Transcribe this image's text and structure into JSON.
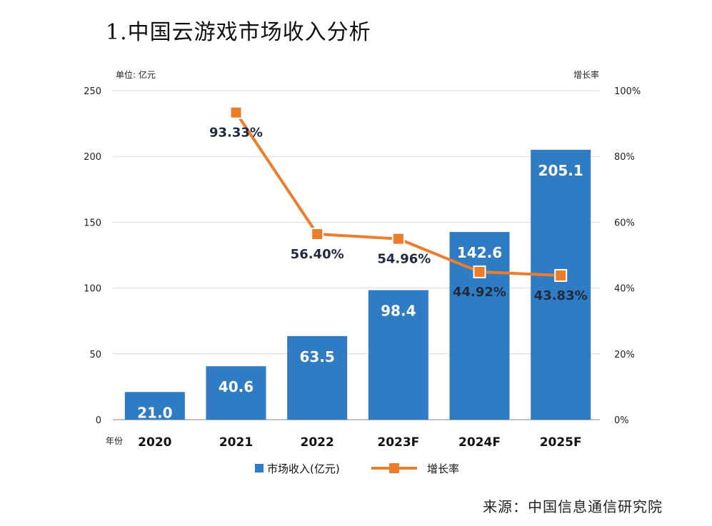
{
  "title": "1.中国云游戏市场收入分析",
  "unit_left": "单位: 亿元",
  "unit_right": "增长率",
  "year_axis_label": "年份",
  "source": "来源：中国信息通信研究院",
  "colors": {
    "bar": "#2f7cc4",
    "line": "#ee7d2b",
    "marker_fill": "#ee7d2b",
    "marker_stroke": "#ffffff"
  },
  "chart_data": {
    "type": "bar",
    "categories": [
      "2020",
      "2021",
      "2022",
      "2023F",
      "2024F",
      "2025F"
    ],
    "series": [
      {
        "name": "市场收入(亿元)",
        "type": "bar",
        "axis": "left",
        "values": [
          21.0,
          40.6,
          63.5,
          98.4,
          142.6,
          205.1
        ],
        "labels": [
          "21.0",
          "40.6",
          "63.5",
          "98.4",
          "142.6",
          "205.1"
        ]
      },
      {
        "name": "增长率",
        "type": "line",
        "axis": "right",
        "values": [
          null,
          93.33,
          56.4,
          54.96,
          44.92,
          43.83
        ],
        "labels": [
          "",
          "93.33%",
          "56.40%",
          "54.96%",
          "44.92%",
          "43.83%"
        ]
      }
    ],
    "y_left": {
      "ylim": [
        0,
        250
      ],
      "ticks": [
        "0",
        "50",
        "100",
        "150",
        "200",
        "250"
      ]
    },
    "y_right": {
      "ylim": [
        0,
        100
      ],
      "ticks": [
        "0%",
        "20%",
        "40%",
        "60%",
        "80%",
        "100%"
      ]
    },
    "legend_placement": "bottom-center",
    "grid": true
  }
}
